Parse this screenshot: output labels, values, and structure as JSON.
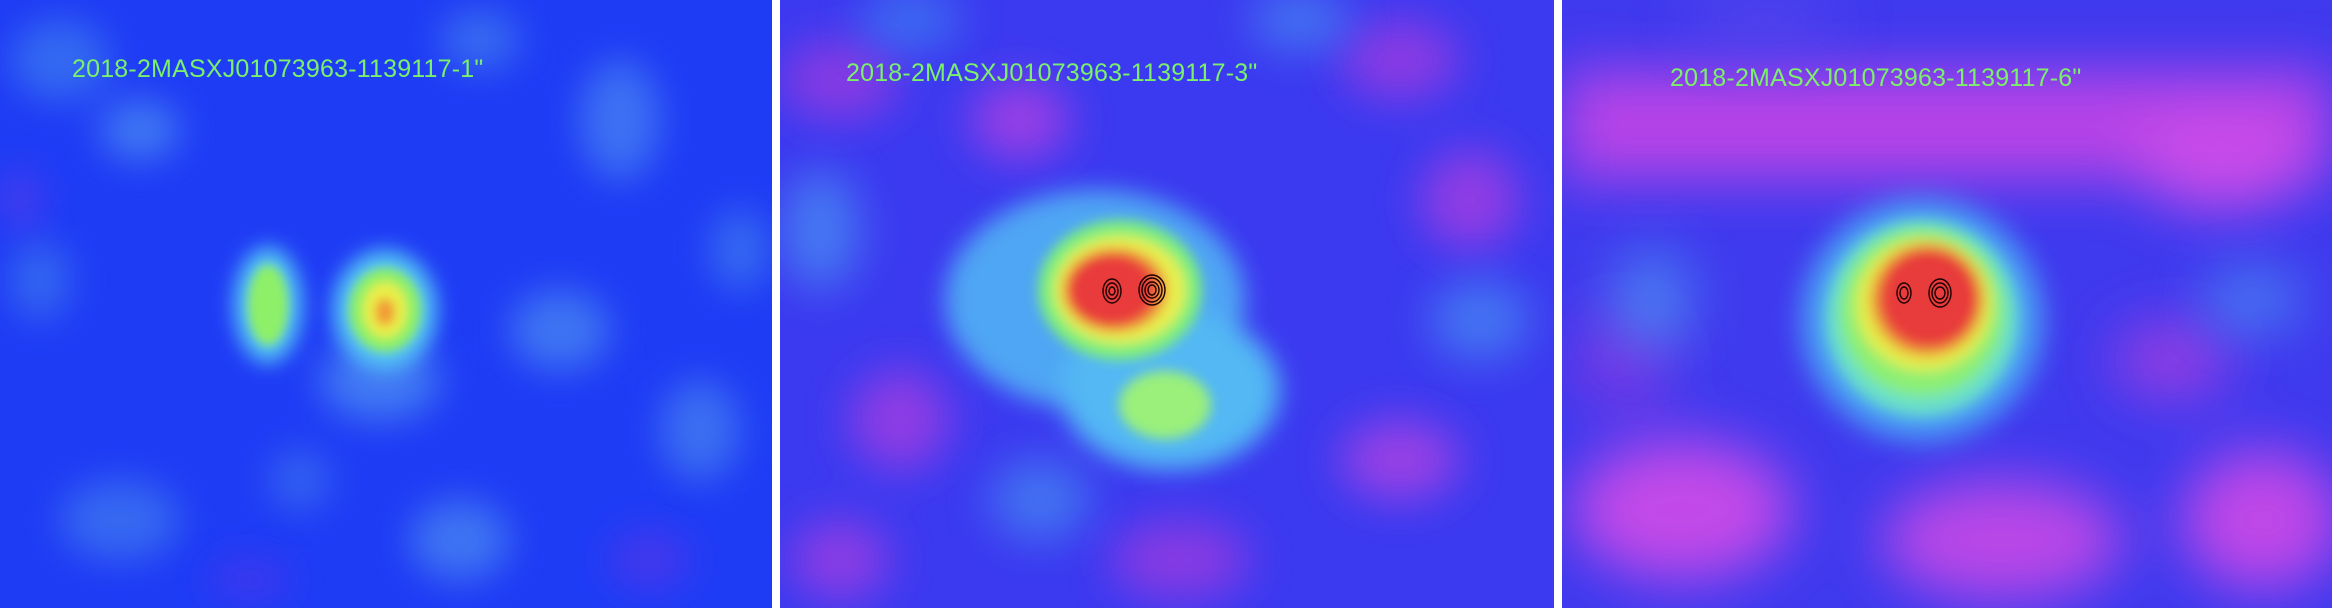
{
  "panels": [
    {
      "label": "2018-2MASXJ01073963-1139117-1\"",
      "colormap": "rainbow (blue-green-yellow-red)",
      "has_contours": false
    },
    {
      "label": "2018-2MASXJ01073963-1139117-3\"",
      "colormap": "rainbow (magenta-blue-green-yellow-red)",
      "has_contours": true
    },
    {
      "label": "2018-2MASXJ01073963-1139117-6\"",
      "colormap": "rainbow (magenta-blue-green-yellow-red)",
      "has_contours": true
    }
  ],
  "colors": {
    "separator": "#ffffff",
    "label_text": "#7bf06a",
    "contour": "#000000"
  }
}
